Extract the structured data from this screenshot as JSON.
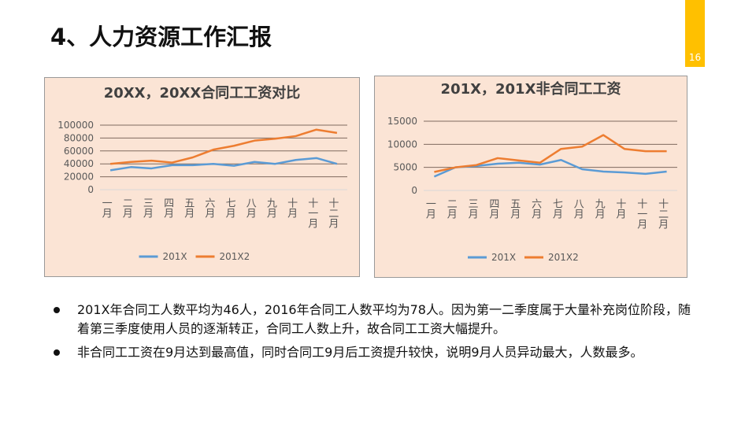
{
  "header": {
    "title": "4、人力资源工作汇报",
    "page_number": "16"
  },
  "colors": {
    "accent": "#ffc000",
    "series1": "#5b9bd5",
    "series2": "#ed7d31",
    "chart_bg": "#fbe4d5"
  },
  "chart_data": [
    {
      "type": "line",
      "title": "20XX，20XX合同工工资对比",
      "xlabel": "",
      "ylabel": "",
      "categories": [
        "一月",
        "二月",
        "三月",
        "四月",
        "五月",
        "六月",
        "七月",
        "八月",
        "九月",
        "十月",
        "十一月",
        "十二月"
      ],
      "yticks": [
        "0",
        "20000",
        "40000",
        "60000",
        "80000",
        "100000"
      ],
      "ylim": [
        0,
        100000
      ],
      "grid": true,
      "legend": "bottom",
      "series": [
        {
          "name": "201X",
          "values": [
            30000,
            35000,
            33000,
            38000,
            38000,
            40000,
            37000,
            43000,
            40000,
            46000,
            49000,
            40000
          ]
        },
        {
          "name": "201X2",
          "values": [
            40000,
            43000,
            45000,
            42000,
            50000,
            62000,
            68000,
            76000,
            79000,
            83000,
            93000,
            88000
          ]
        }
      ]
    },
    {
      "type": "line",
      "title": "201X，201X非合同工工资",
      "xlabel": "",
      "ylabel": "",
      "categories": [
        "一月",
        "二月",
        "三月",
        "四月",
        "五月",
        "六月",
        "七月",
        "八月",
        "九月",
        "十月",
        "十一月",
        "十二月"
      ],
      "yticks": [
        "0",
        "5000",
        "10000",
        "15000"
      ],
      "ylim": [
        0,
        15000
      ],
      "grid": true,
      "legend": "bottom",
      "series": [
        {
          "name": "201X",
          "values": [
            3000,
            5000,
            5300,
            5800,
            6000,
            5600,
            6600,
            4600,
            4100,
            3900,
            3600,
            4100
          ]
        },
        {
          "name": "201X2",
          "values": [
            4000,
            5000,
            5500,
            7000,
            6500,
            6000,
            9000,
            9500,
            12000,
            9000,
            8500,
            8500
          ]
        }
      ]
    }
  ],
  "bullets": [
    "201X年合同工人数平均为46人，2016年合同工人数平均为78人。因为第一二季度属于大量补充岗位阶段，随着第三季度使用人员的逐渐转正，合同工人数上升，故合同工工资大幅提升。",
    "非合同工工资在9月达到最高值，同时合同工9月后工资提升较快，说明9月人员异动最大，人数最多。"
  ]
}
